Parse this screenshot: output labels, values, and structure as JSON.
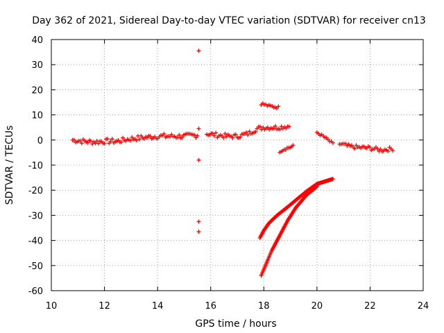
{
  "chart_data": {
    "type": "scatter",
    "title": "Day 362 of 2021, Sidereal Day-to-day VTEC variation (SDTVAR) for receiver cn13",
    "xlabel": "GPS time / hours",
    "ylabel": "SDTVAR / TECUs",
    "xlim": [
      10,
      24
    ],
    "ylim": [
      -60,
      40
    ],
    "xticks": [
      10,
      12,
      14,
      16,
      18,
      20,
      22,
      24
    ],
    "yticks": [
      40,
      30,
      20,
      10,
      0,
      -10,
      -20,
      -30,
      -40,
      -50,
      -60
    ],
    "grid": true,
    "marker": "+",
    "color": "#ff0000",
    "series": [
      {
        "name": "segment-morning",
        "kind": "segment",
        "points": [
          [
            10.8,
            0
          ],
          [
            11.2,
            -0.5
          ],
          [
            11.6,
            -0.8
          ],
          [
            12.0,
            -0.5
          ],
          [
            12.5,
            -0.5
          ],
          [
            13.0,
            0.5
          ],
          [
            13.5,
            1.0
          ],
          [
            14.0,
            1.5
          ],
          [
            14.5,
            1.5
          ],
          [
            15.0,
            1.5
          ],
          [
            15.5,
            2.0
          ]
        ],
        "spread": 1.0
      },
      {
        "name": "segment-afternoon",
        "kind": "segment",
        "points": [
          [
            15.85,
            2.5
          ],
          [
            16.2,
            2.0
          ],
          [
            16.6,
            1.5
          ],
          [
            17.0,
            1.5
          ],
          [
            17.4,
            2.5
          ],
          [
            17.75,
            4.5
          ],
          [
            18.0,
            5.0
          ],
          [
            18.5,
            5.0
          ],
          [
            18.95,
            5.5
          ]
        ],
        "spread": 0.9
      },
      {
        "name": "segment-high",
        "kind": "segment",
        "points": [
          [
            17.9,
            14.5
          ],
          [
            18.2,
            13.5
          ],
          [
            18.55,
            13.0
          ]
        ],
        "spread": 0.5
      },
      {
        "name": "segment-dip",
        "kind": "segment",
        "points": [
          [
            18.6,
            -4.5
          ],
          [
            18.8,
            -3.5
          ],
          [
            19.1,
            -2.5
          ]
        ],
        "spread": 0.5
      },
      {
        "name": "segment-evening",
        "kind": "segment",
        "points": [
          [
            20.0,
            3.0
          ],
          [
            20.3,
            1.0
          ],
          [
            20.6,
            -1.5
          ]
        ],
        "spread": 0.5
      },
      {
        "name": "segment-late",
        "kind": "segment",
        "points": [
          [
            20.85,
            -1.5
          ],
          [
            21.2,
            -2.5
          ],
          [
            21.6,
            -3.0
          ],
          [
            22.0,
            -3.2
          ],
          [
            22.4,
            -4.0
          ],
          [
            22.85,
            -3.5
          ]
        ],
        "spread": 0.8
      },
      {
        "name": "arc-upper",
        "kind": "curve",
        "points": [
          [
            17.85,
            -39
          ],
          [
            18.0,
            -36
          ],
          [
            18.2,
            -33
          ],
          [
            18.5,
            -30
          ],
          [
            18.8,
            -27.5
          ],
          [
            19.2,
            -24
          ],
          [
            19.6,
            -20.5
          ],
          [
            20.0,
            -17.5
          ],
          [
            20.3,
            -16.5
          ],
          [
            20.6,
            -15.5
          ]
        ]
      },
      {
        "name": "arc-lower",
        "kind": "curve",
        "points": [
          [
            17.9,
            -54
          ],
          [
            18.1,
            -49
          ],
          [
            18.3,
            -44
          ],
          [
            18.6,
            -38
          ],
          [
            18.9,
            -32
          ],
          [
            19.2,
            -27
          ],
          [
            19.6,
            -22
          ],
          [
            20.0,
            -18.5
          ]
        ]
      },
      {
        "name": "outliers",
        "kind": "points",
        "points": [
          [
            15.55,
            35.5
          ],
          [
            15.55,
            4.5
          ],
          [
            15.55,
            -8
          ],
          [
            15.55,
            -32.5
          ],
          [
            15.55,
            -36.5
          ]
        ]
      }
    ]
  }
}
